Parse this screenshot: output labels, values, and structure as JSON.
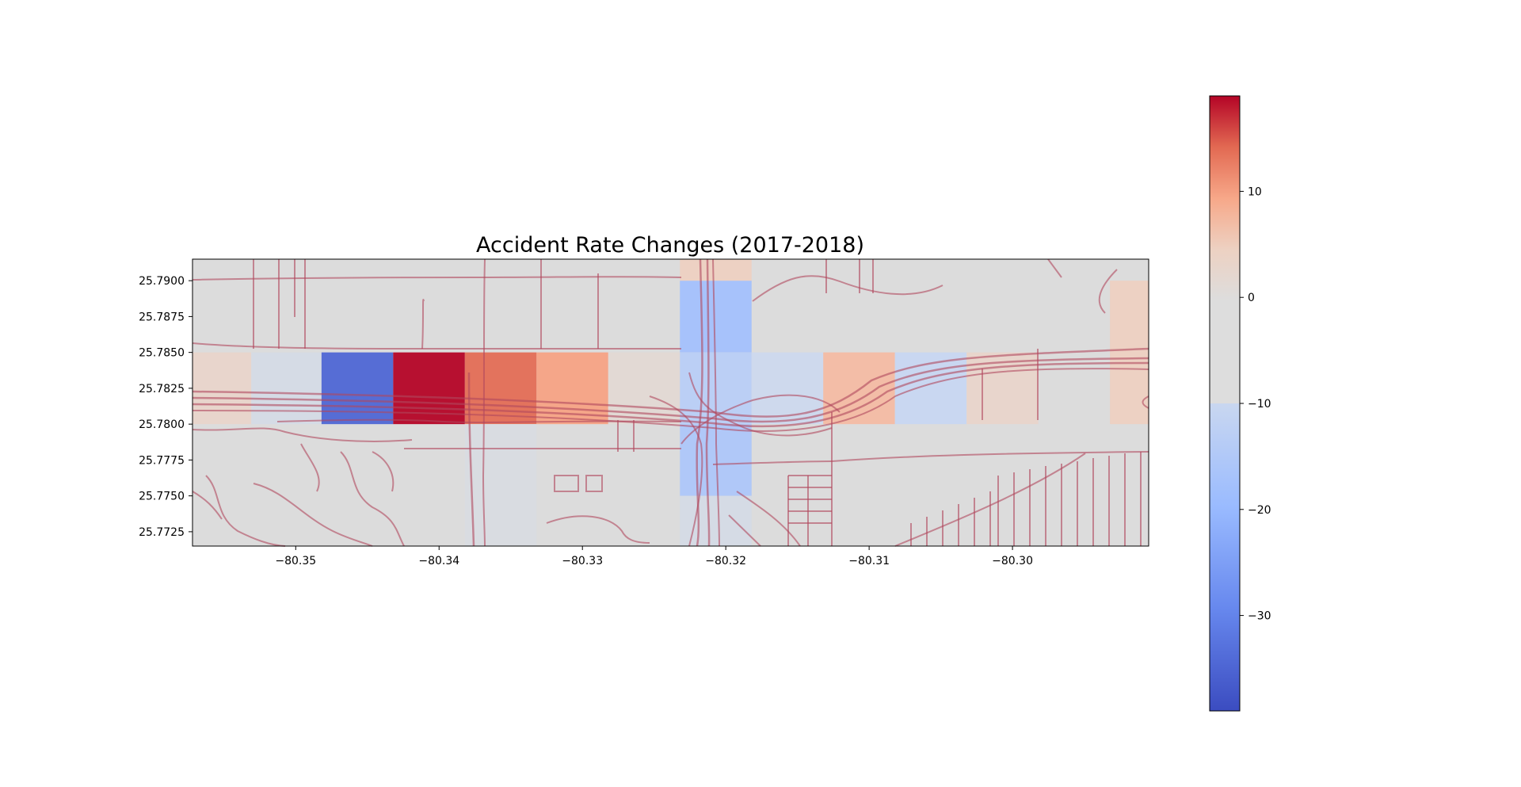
{
  "chart_data": {
    "type": "heatmap",
    "title": "Accident Rate Changes (2017-2018)",
    "xlabel": "",
    "ylabel": "",
    "xlim": [
      -80.3572,
      -80.2905
    ],
    "ylim": [
      25.7715,
      25.7915
    ],
    "grid": false,
    "x_ticks": [
      -80.35,
      -80.34,
      -80.33,
      -80.32,
      -80.31,
      -80.3
    ],
    "x_tick_labels": [
      "−80.35",
      "−80.34",
      "−80.33",
      "−80.32",
      "−80.31",
      "−80.30"
    ],
    "y_ticks": [
      25.7725,
      25.775,
      25.7775,
      25.78,
      25.7825,
      25.785,
      25.7875,
      25.79
    ],
    "y_tick_labels": [
      "25.7725",
      "25.7750",
      "25.7775",
      "25.7800",
      "25.7825",
      "25.7850",
      "25.7875",
      "25.7900"
    ],
    "colormap": "coolwarm",
    "colorbar": {
      "vmin": -39,
      "vmax": 19,
      "ticks": [
        -30,
        -20,
        -10,
        0,
        10
      ],
      "tick_labels": [
        "−30",
        "−20",
        "−10",
        "0",
        "10"
      ],
      "placement": "right"
    },
    "background_color": "#dcdcdc",
    "road_color": "#b0485e",
    "cells": [
      {
        "x0": -80.3572,
        "x1": -80.3531,
        "y0": 25.78,
        "y1": 25.785,
        "value": 2
      },
      {
        "x0": -80.3531,
        "x1": -80.3482,
        "y0": 25.78,
        "y1": 25.785,
        "value": -2
      },
      {
        "x0": -80.3482,
        "x1": -80.3432,
        "y0": 25.78,
        "y1": 25.785,
        "value": -34
      },
      {
        "x0": -80.3432,
        "x1": -80.3382,
        "y0": 25.78,
        "y1": 25.785,
        "value": 19
      },
      {
        "x0": -80.3382,
        "x1": -80.3332,
        "y0": 25.78,
        "y1": 25.785,
        "value": 13
      },
      {
        "x0": -80.3332,
        "x1": -80.3282,
        "y0": 25.78,
        "y1": 25.785,
        "value": 9
      },
      {
        "x0": -80.3282,
        "x1": -80.3232,
        "y0": 25.78,
        "y1": 25.785,
        "value": 1
      },
      {
        "x0": -80.3232,
        "x1": -80.3182,
        "y0": 25.785,
        "y1": 25.79,
        "value": -12
      },
      {
        "x0": -80.3232,
        "x1": -80.3182,
        "y0": 25.79,
        "y1": 25.7915,
        "value": 3
      },
      {
        "x0": -80.3232,
        "x1": -80.3182,
        "y0": 25.78,
        "y1": 25.785,
        "value": -8
      },
      {
        "x0": -80.3232,
        "x1": -80.3182,
        "y0": 25.775,
        "y1": 25.78,
        "value": -10
      },
      {
        "x0": -80.3232,
        "x1": -80.3182,
        "y0": 25.7715,
        "y1": 25.775,
        "value": -2
      },
      {
        "x0": -80.3182,
        "x1": -80.3132,
        "y0": 25.78,
        "y1": 25.785,
        "value": -4
      },
      {
        "x0": -80.3132,
        "x1": -80.3082,
        "y0": 25.78,
        "y1": 25.785,
        "value": 6
      },
      {
        "x0": -80.3082,
        "x1": -80.3032,
        "y0": 25.78,
        "y1": 25.785,
        "value": -5
      },
      {
        "x0": -80.3032,
        "x1": -80.2982,
        "y0": 25.78,
        "y1": 25.785,
        "value": 2
      },
      {
        "x0": -80.2932,
        "x1": -80.2905,
        "y0": 25.78,
        "y1": 25.79,
        "value": 3
      },
      {
        "x0": -80.3382,
        "x1": -80.3332,
        "y0": 25.7715,
        "y1": 25.78,
        "value": -1
      }
    ]
  }
}
